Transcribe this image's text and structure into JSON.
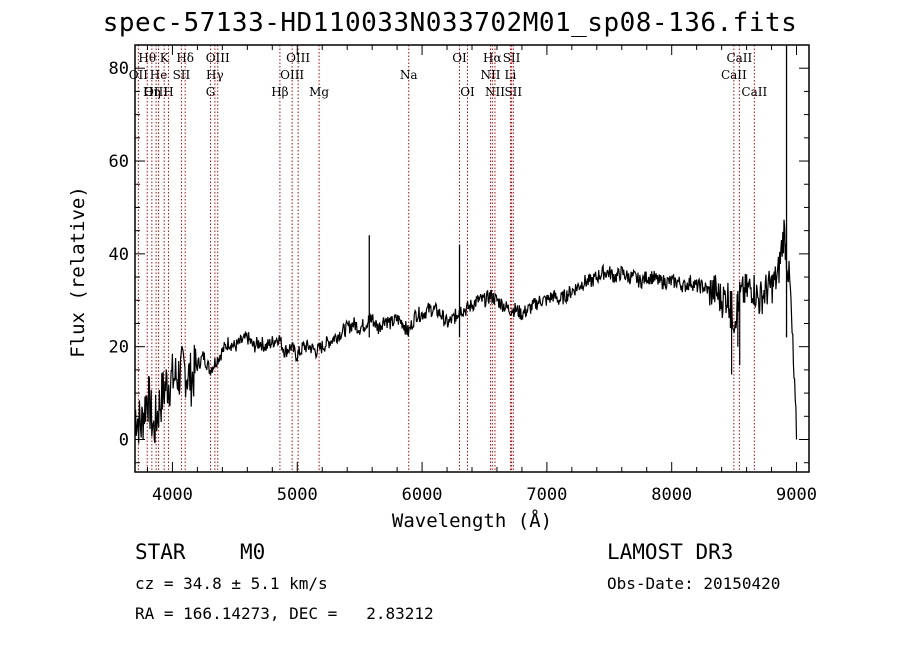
{
  "chart_data": {
    "type": "line",
    "title": "spec-57133-HD110033N033702M01_sp08-136.fits",
    "xlabel": "Wavelength (Å)",
    "ylabel": "Flux (relative)",
    "xlim": [
      3700,
      9100
    ],
    "ylim": [
      -7,
      85
    ],
    "xticks": [
      4000,
      5000,
      6000,
      7000,
      8000,
      9000
    ],
    "yticks": [
      0,
      20,
      40,
      60,
      80
    ],
    "line_color": "#000000",
    "marker_color": "#cc0000",
    "series": [
      {
        "name": "flux",
        "x": [
          3700,
          3750,
          3800,
          3850,
          3900,
          3950,
          4000,
          4050,
          4100,
          4150,
          4200,
          4250,
          4300,
          4350,
          4400,
          4450,
          4500,
          4550,
          4600,
          4650,
          4700,
          4750,
          4800,
          4850,
          4900,
          4950,
          5000,
          5050,
          5100,
          5150,
          5200,
          5250,
          5300,
          5350,
          5400,
          5450,
          5500,
          5550,
          5580,
          5600,
          5650,
          5700,
          5750,
          5800,
          5850,
          5890,
          5950,
          6000,
          6050,
          6100,
          6150,
          6200,
          6250,
          6280,
          6300,
          6350,
          6400,
          6450,
          6500,
          6550,
          6600,
          6650,
          6700,
          6750,
          6800,
          6850,
          6900,
          6950,
          7000,
          7050,
          7100,
          7150,
          7200,
          7250,
          7300,
          7350,
          7400,
          7450,
          7500,
          7550,
          7600,
          7650,
          7700,
          7750,
          7800,
          7850,
          7900,
          7950,
          8000,
          8050,
          8100,
          8150,
          8200,
          8250,
          8300,
          8350,
          8400,
          8450,
          8500,
          8550,
          8600,
          8650,
          8700,
          8750,
          8800,
          8850,
          8900,
          8950,
          9000
        ],
        "y": [
          6,
          3,
          10,
          2,
          8,
          12,
          13,
          14,
          15,
          13,
          16,
          18,
          15,
          17,
          19,
          21,
          20,
          21,
          22,
          20,
          21,
          20,
          21,
          22,
          19,
          20,
          18,
          20,
          20,
          19,
          20,
          21,
          22,
          23,
          24,
          25,
          24,
          25,
          26,
          26,
          24,
          26,
          25,
          26,
          25,
          23,
          27,
          27,
          28,
          28,
          27,
          25,
          26,
          27,
          28,
          28,
          29,
          30,
          30,
          31,
          30,
          29,
          28,
          28,
          27,
          28,
          29,
          30,
          30,
          31,
          30,
          31,
          32,
          33,
          34,
          34,
          35,
          36,
          36,
          35,
          36,
          35,
          35,
          34,
          35,
          35,
          34,
          34,
          34,
          34,
          33,
          34,
          33,
          33,
          32,
          32,
          30,
          31,
          26,
          31,
          32,
          33,
          30,
          32,
          33,
          35,
          45,
          32,
          0
        ]
      }
    ],
    "spikes": [
      {
        "x": 5577,
        "y": 44,
        "label": "sky emission line"
      },
      {
        "x": 6300,
        "y": 42,
        "label": "sky emission line"
      },
      {
        "x": 8920,
        "y": 85,
        "label": "sky residual"
      }
    ],
    "line_markers": [
      {
        "label": "Hθ",
        "x": 3798,
        "row": 0
      },
      {
        "label": "OII",
        "x": 3727,
        "row": 1
      },
      {
        "label": "OIII",
        "x": 3869,
        "row": 2
      },
      {
        "label": "He",
        "x": 3889,
        "row": 1
      },
      {
        "label": "K",
        "x": 3934,
        "row": 0
      },
      {
        "label": "Hη",
        "x": 3835,
        "row": 2
      },
      {
        "label": "H",
        "x": 3968,
        "row": 2
      },
      {
        "label": "SII",
        "x": 4072,
        "row": 1
      },
      {
        "label": "Hδ",
        "x": 4102,
        "row": 0
      },
      {
        "label": "OIII",
        "x": 4363,
        "row": 0
      },
      {
        "label": "Hγ",
        "x": 4340,
        "row": 1
      },
      {
        "label": "G",
        "x": 4305,
        "row": 2
      },
      {
        "label": "OIII",
        "x": 5007,
        "row": 0
      },
      {
        "label": "OIII",
        "x": 4959,
        "row": 1
      },
      {
        "label": "Hβ",
        "x": 4861,
        "row": 2
      },
      {
        "label": "Mg",
        "x": 5175,
        "row": 2
      },
      {
        "label": "Na",
        "x": 5893,
        "row": 1
      },
      {
        "label": "OI",
        "x": 6300,
        "row": 0
      },
      {
        "label": "OI",
        "x": 6364,
        "row": 2
      },
      {
        "label": "Hα",
        "x": 6563,
        "row": 0
      },
      {
        "label": "NII",
        "x": 6548,
        "row": 1
      },
      {
        "label": "NII",
        "x": 6584,
        "row": 2
      },
      {
        "label": "SII",
        "x": 6717,
        "row": 0
      },
      {
        "label": "Li",
        "x": 6708,
        "row": 1
      },
      {
        "label": "SII",
        "x": 6731,
        "row": 2
      },
      {
        "label": "CaII",
        "x": 8542,
        "row": 0
      },
      {
        "label": "CaII",
        "x": 8498,
        "row": 1
      },
      {
        "label": "CaII",
        "x": 8662,
        "row": 2
      }
    ]
  },
  "info": {
    "object_class": "STAR",
    "subclass": "M0",
    "survey": "LAMOST DR3",
    "redshift": "cz = 34.8 ± 5.1 km/s",
    "obs_date": "Obs-Date: 20150420",
    "coordinates": "RA = 166.14273, DEC =   2.83212"
  }
}
